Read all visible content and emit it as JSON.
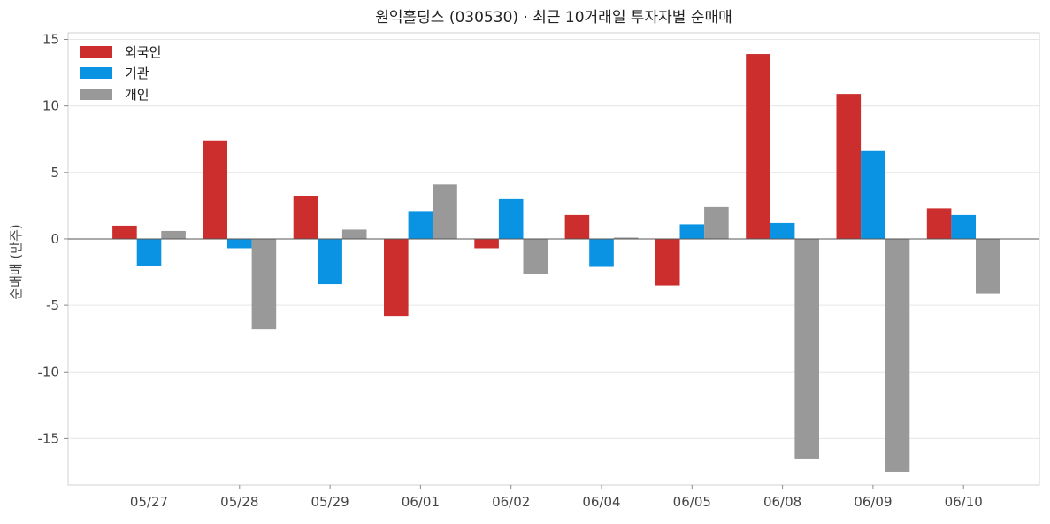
{
  "chart_data": {
    "type": "bar",
    "title": "원익홀딩스 (030530) · 최근 10거래일 투자자별 순매매",
    "xlabel": "",
    "ylabel": "순매매 (만주)",
    "categories": [
      "05/27",
      "05/28",
      "05/29",
      "06/01",
      "06/02",
      "06/04",
      "06/05",
      "06/08",
      "06/09",
      "06/10"
    ],
    "series": [
      {
        "name": "외국인",
        "color": "#cc2e2e",
        "values": [
          1.0,
          7.4,
          3.2,
          -5.8,
          -0.7,
          1.8,
          -3.5,
          13.9,
          10.9,
          2.3
        ]
      },
      {
        "name": "기관",
        "color": "#0a92e3",
        "values": [
          -2.0,
          -0.7,
          -3.4,
          2.1,
          3.0,
          -2.1,
          1.1,
          1.2,
          6.6,
          1.8
        ]
      },
      {
        "name": "개인",
        "color": "#999999",
        "values": [
          0.6,
          -6.8,
          0.7,
          4.1,
          -2.6,
          0.1,
          2.4,
          -16.5,
          -17.5,
          -4.1
        ]
      }
    ],
    "ylim": [
      -18.5,
      15.5
    ],
    "yticks": [
      15,
      10,
      5,
      0,
      -5,
      -10,
      -15
    ],
    "ytick_labels": [
      "15",
      "10",
      "5",
      "0",
      "-5",
      "-10",
      "-15"
    ],
    "grid": "horizontal",
    "legend_position": "top-left",
    "zero_line": true
  }
}
